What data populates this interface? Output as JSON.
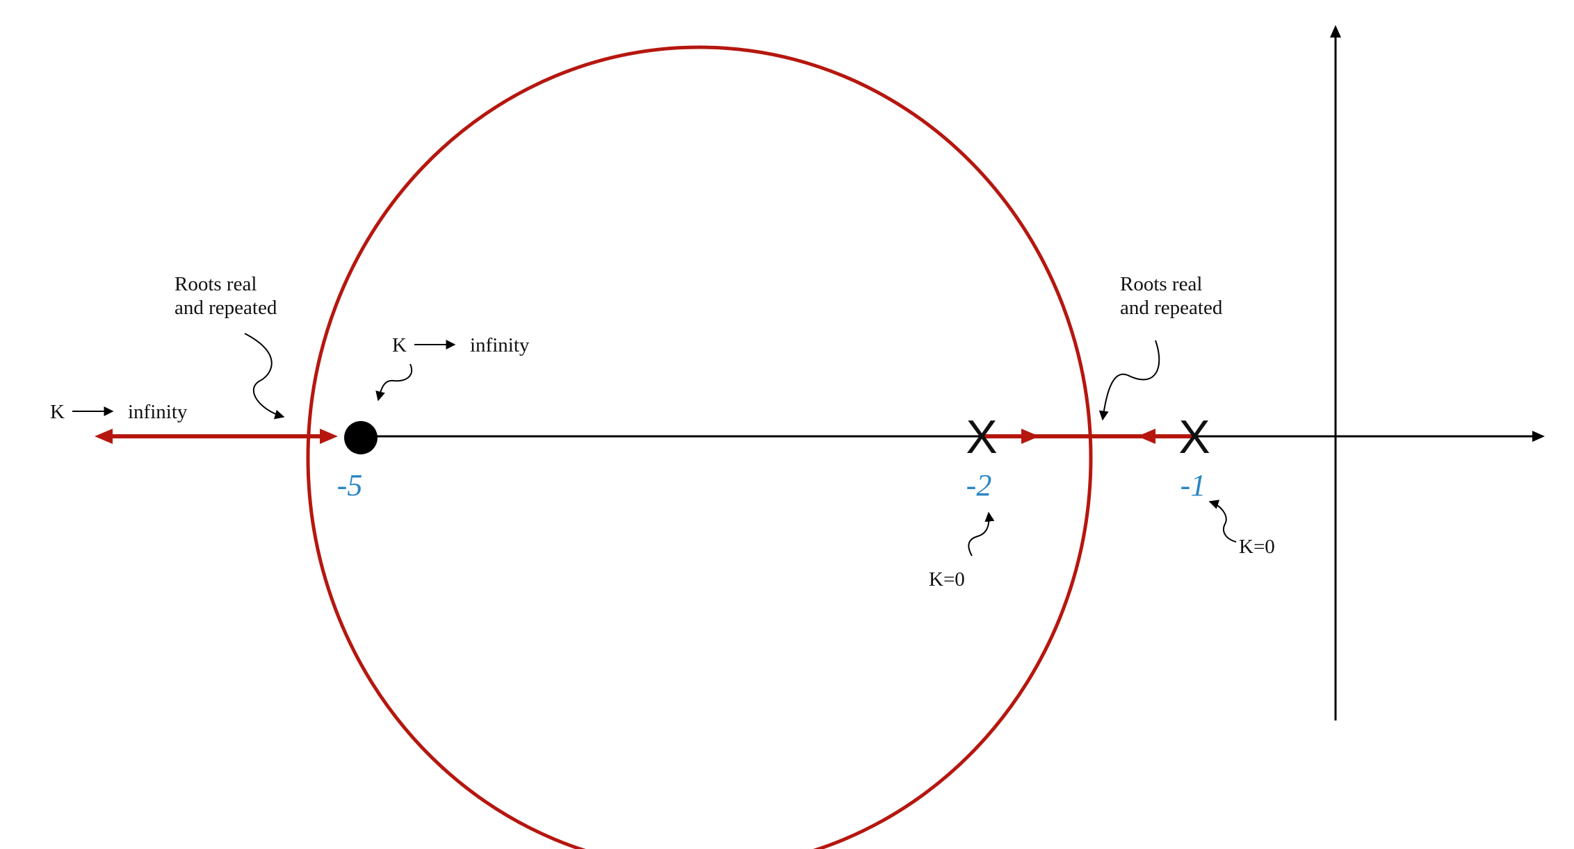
{
  "diagram": {
    "colors": {
      "locus": "#b5170f",
      "axis": "#000000",
      "value_label": "#2a86c4",
      "text": "#111111"
    },
    "locus_shape": "circle",
    "real_axis_values": [
      {
        "id": "zero",
        "label": "-5",
        "marker": "filled-circle"
      },
      {
        "id": "pole_a",
        "label": "-2",
        "marker": "X"
      },
      {
        "id": "pole_b",
        "label": "-1",
        "marker": "X"
      }
    ],
    "pole_marker_glyph": "X",
    "annotations": {
      "breakaway_left": [
        "Roots real",
        "and repeated"
      ],
      "breakaway_right": [
        "Roots real",
        "and repeated"
      ],
      "k_infinity_left": {
        "k": "K",
        "text": "infinity"
      },
      "k_infinity_zero": {
        "k": "K",
        "text": "infinity"
      },
      "k_zero_pole_a": "K=0",
      "k_zero_pole_b": "K=0"
    },
    "icons": [
      "arrow-right-icon",
      "curved-arrow-icon"
    ]
  }
}
